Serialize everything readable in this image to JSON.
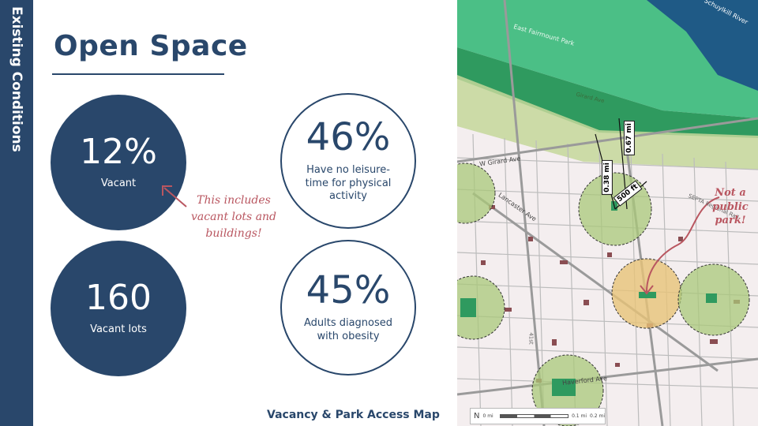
{
  "sidebar": {
    "label": "Existing Conditions"
  },
  "title": "Open Space",
  "stats": [
    {
      "value": "12%",
      "caption": "Vacant"
    },
    {
      "value": "160",
      "caption": "Vacant lots"
    },
    {
      "value": "46%",
      "caption": "Have no leisure-time for physical activity"
    },
    {
      "value": "45%",
      "caption": "Adults diagnosed with obesity"
    }
  ],
  "annotation": {
    "text": "This includes vacant lots and buildings!"
  },
  "map": {
    "caption": "Vacancy & Park Access Map",
    "labels": {
      "river": "Schuylkill River",
      "park": "East Fairmount Park",
      "girard": "W Girard Ave",
      "lancaster": "Lancaster Ave",
      "haverford": "Haverford Ave",
      "rail": "SEPTA Regional Rail",
      "street41": "41st",
      "street_girard2": "Girard Ave"
    },
    "measures": {
      "d1": "0.38 mi",
      "d2": "0.67 mi",
      "d3": "500 ft"
    },
    "note": "Not a public park!",
    "scale": {
      "north": "N",
      "s0": "0 mi",
      "s1": "0.1 mi",
      "s2": "0.2 mi"
    }
  },
  "colors": {
    "navy": "#29476b",
    "accent": "#b95660",
    "park": "#3ea36a",
    "buffer": "#a9c879",
    "vacant": "#8a4d52"
  }
}
